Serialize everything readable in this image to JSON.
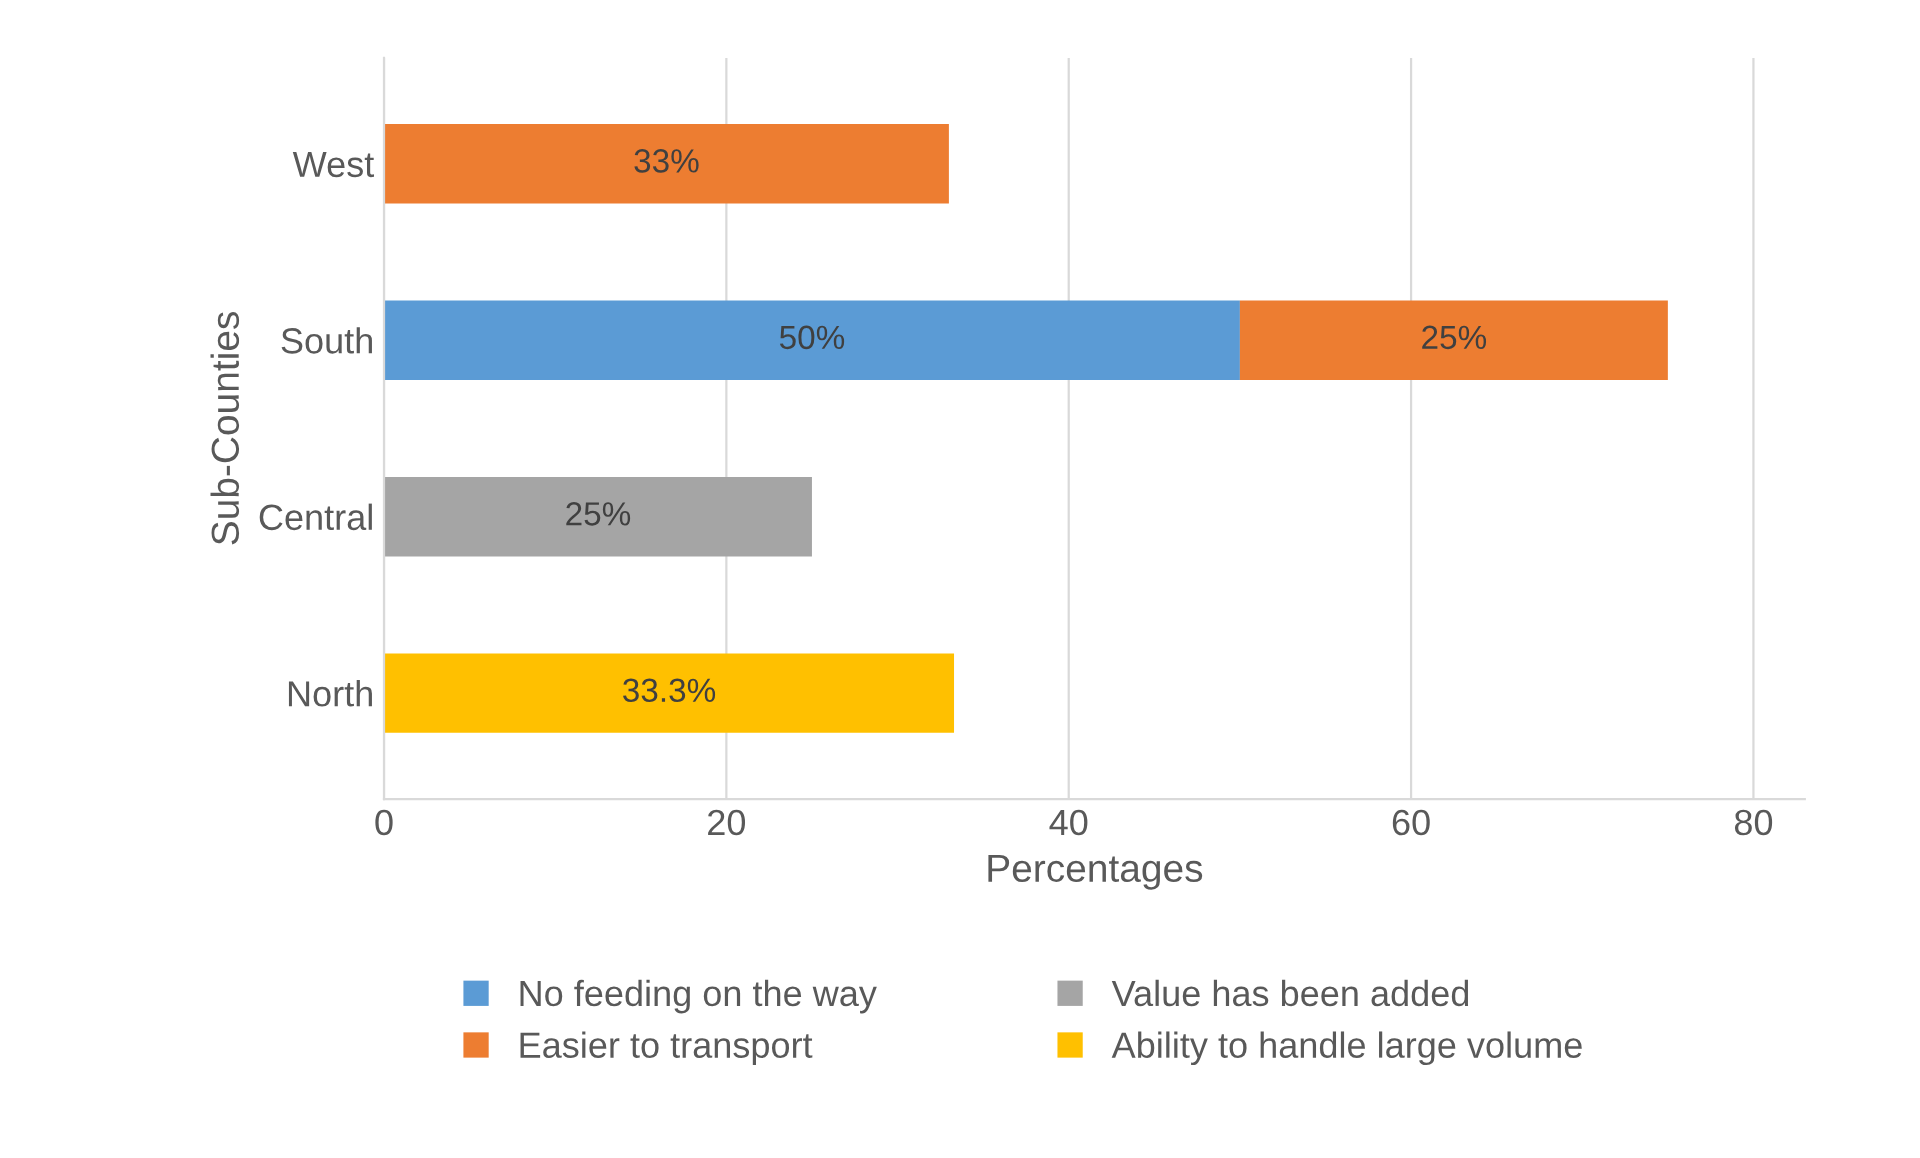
{
  "chart_data": {
    "type": "bar",
    "orientation": "horizontal",
    "stacked": true,
    "xlabel": "Percentages",
    "ylabel": "Sub-Counties",
    "categories": [
      "West",
      "South",
      "Central",
      "North"
    ],
    "series": [
      {
        "name": "No feeding on the way",
        "color": "#5b9bd5",
        "values": [
          null,
          50,
          null,
          null
        ],
        "value_labels": [
          null,
          "50%",
          null,
          null
        ]
      },
      {
        "name": "Easier to transport",
        "color": "#ed7d31",
        "values": [
          33,
          25,
          null,
          null
        ],
        "value_labels": [
          "33%",
          "25%",
          null,
          null
        ]
      },
      {
        "name": "Value has been added",
        "color": "#a5a5a5",
        "values": [
          null,
          null,
          25,
          null
        ],
        "value_labels": [
          null,
          null,
          "25%",
          null
        ]
      },
      {
        "name": "Ability to handle large volume",
        "color": "#ffc000",
        "values": [
          null,
          null,
          null,
          33.3
        ],
        "value_labels": [
          null,
          null,
          null,
          "33.3%"
        ]
      }
    ],
    "xlim": [
      0,
      83
    ],
    "xticks": [
      0,
      20,
      40,
      60,
      80
    ],
    "grid": "x",
    "legend": "bottom"
  }
}
